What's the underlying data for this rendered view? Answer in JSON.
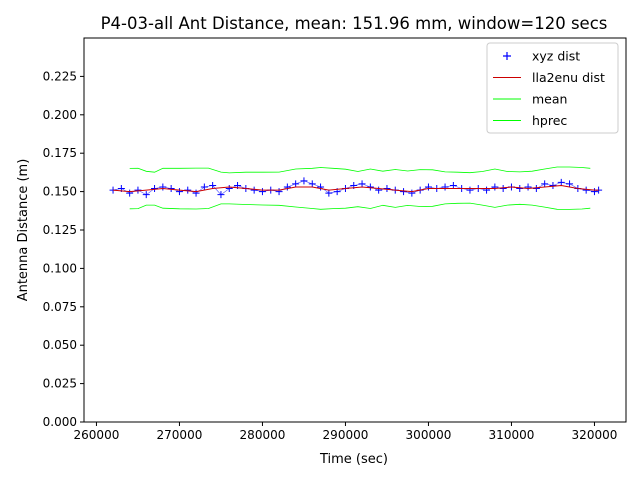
{
  "chart_data": {
    "type": "line",
    "title": "P4-03-all Ant Distance, mean: 151.96 mm, window=120 secs",
    "xlabel": "Time (sec)",
    "ylabel": "Antenna Distance (m)",
    "xlim": [
      258500,
      323800
    ],
    "ylim": [
      0.0,
      0.25
    ],
    "grid": false,
    "legend_position": "top-right",
    "x_ticks": [
      260000,
      270000,
      280000,
      290000,
      300000,
      310000,
      320000
    ],
    "x_tick_labels": [
      "260000",
      "270000",
      "280000",
      "290000",
      "300000",
      "310000",
      "320000"
    ],
    "y_ticks": [
      0.0,
      0.025,
      0.05,
      0.075,
      0.1,
      0.125,
      0.15,
      0.175,
      0.2,
      0.225
    ],
    "y_tick_labels": [
      "0.000",
      "0.025",
      "0.050",
      "0.075",
      "0.100",
      "0.125",
      "0.150",
      "0.175",
      "0.200",
      "0.225"
    ],
    "series": [
      {
        "name": "xyz dist",
        "style": "markers",
        "marker": "+",
        "color": "#0000ff",
        "x": [
          262000,
          263000,
          264000,
          265000,
          266000,
          267000,
          268000,
          269000,
          270000,
          271000,
          272000,
          273000,
          274000,
          275000,
          276000,
          277000,
          278000,
          279000,
          280000,
          281000,
          282000,
          283000,
          284000,
          285000,
          286000,
          287000,
          288000,
          289000,
          290000,
          291000,
          292000,
          293000,
          294000,
          295000,
          296000,
          297000,
          298000,
          299000,
          300000,
          301000,
          302000,
          303000,
          304000,
          305000,
          306000,
          307000,
          308000,
          309000,
          310000,
          311000,
          312000,
          313000,
          314000,
          315000,
          316000,
          317000,
          318000,
          319000,
          320000,
          320500
        ],
        "y": [
          0.151,
          0.152,
          0.149,
          0.151,
          0.148,
          0.152,
          0.153,
          0.152,
          0.15,
          0.151,
          0.149,
          0.153,
          0.154,
          0.148,
          0.152,
          0.154,
          0.152,
          0.151,
          0.15,
          0.151,
          0.15,
          0.153,
          0.155,
          0.157,
          0.155,
          0.153,
          0.149,
          0.15,
          0.152,
          0.154,
          0.155,
          0.153,
          0.151,
          0.152,
          0.151,
          0.15,
          0.149,
          0.151,
          0.153,
          0.152,
          0.153,
          0.154,
          0.152,
          0.151,
          0.152,
          0.151,
          0.153,
          0.152,
          0.153,
          0.152,
          0.153,
          0.152,
          0.155,
          0.154,
          0.156,
          0.155,
          0.152,
          0.151,
          0.15,
          0.151
        ]
      },
      {
        "name": "lla2enu dist",
        "style": "line",
        "color": "#cc0000",
        "x": [
          262000,
          264000,
          266000,
          268000,
          270000,
          272000,
          274000,
          276000,
          278000,
          280000,
          282000,
          284000,
          286000,
          288000,
          290000,
          292000,
          294000,
          296000,
          298000,
          300000,
          302000,
          304000,
          306000,
          308000,
          310000,
          312000,
          314000,
          316000,
          318000,
          320000,
          320500
        ],
        "y": [
          0.151,
          0.15,
          0.151,
          0.152,
          0.151,
          0.15,
          0.152,
          0.153,
          0.152,
          0.151,
          0.151,
          0.153,
          0.153,
          0.151,
          0.152,
          0.153,
          0.152,
          0.151,
          0.15,
          0.152,
          0.152,
          0.152,
          0.152,
          0.152,
          0.153,
          0.152,
          0.153,
          0.154,
          0.152,
          0.151,
          0.151
        ]
      },
      {
        "name": "mean",
        "style": "line",
        "color": "#00ff00",
        "x": [
          264000,
          265000,
          266000,
          267000,
          268000,
          270000,
          272000,
          273500,
          275000,
          276000,
          278000,
          280000,
          282000,
          284000,
          286000,
          287000,
          288500,
          290000,
          291500,
          293000,
          294500,
          296000,
          297500,
          299000,
          300500,
          302000,
          303500,
          305000,
          306500,
          308000,
          309500,
          311000,
          312500,
          314000,
          315500,
          317000,
          318500,
          319500
        ],
        "y": [
          0.1651,
          0.1652,
          0.1632,
          0.1626,
          0.1652,
          0.1652,
          0.1653,
          0.1653,
          0.1627,
          0.1622,
          0.1626,
          0.1626,
          0.1627,
          0.1647,
          0.1652,
          0.1657,
          0.1652,
          0.1646,
          0.1631,
          0.1647,
          0.1633,
          0.1644,
          0.1634,
          0.1643,
          0.1642,
          0.1628,
          0.1626,
          0.1623,
          0.1631,
          0.1647,
          0.1631,
          0.1628,
          0.1633,
          0.1647,
          0.166,
          0.166,
          0.1657,
          0.1652
        ]
      },
      {
        "name": "hprec",
        "style": "line",
        "color": "#00ff00",
        "x": [
          264000,
          265000,
          266000,
          267000,
          268000,
          270000,
          272000,
          273500,
          275000,
          276000,
          278000,
          280000,
          282000,
          284000,
          286000,
          287000,
          288500,
          290000,
          291500,
          293000,
          294500,
          296000,
          297500,
          299000,
          300500,
          302000,
          303500,
          305000,
          306500,
          308000,
          309500,
          311000,
          312500,
          314000,
          315500,
          317000,
          318500,
          319500
        ],
        "y": [
          0.1388,
          0.1389,
          0.1412,
          0.1412,
          0.1392,
          0.1388,
          0.1387,
          0.139,
          0.142,
          0.142,
          0.1416,
          0.1413,
          0.1411,
          0.14,
          0.139,
          0.1385,
          0.1389,
          0.1392,
          0.1402,
          0.139,
          0.1411,
          0.1397,
          0.141,
          0.1403,
          0.1404,
          0.142,
          0.1424,
          0.1425,
          0.1412,
          0.1397,
          0.1412,
          0.1417,
          0.1412,
          0.1399,
          0.1385,
          0.1384,
          0.1387,
          0.1392
        ]
      }
    ]
  }
}
